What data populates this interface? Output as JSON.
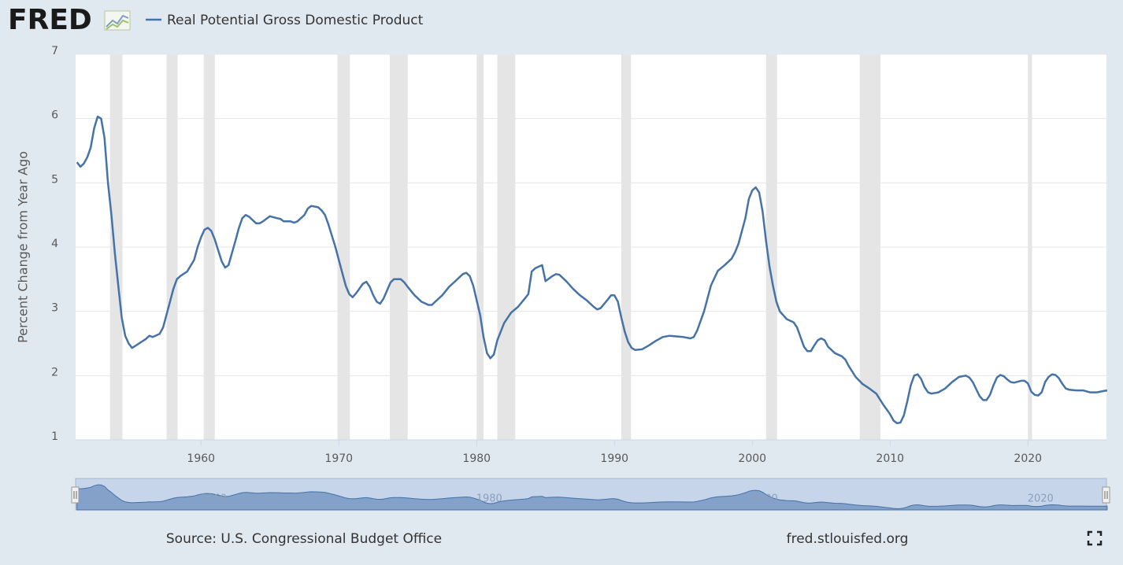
{
  "chart_data": {
    "type": "line",
    "logo": "FRED",
    "ylabel": "Percent Change from Year Ago",
    "source": "Source: U.S. Congressional Budget Office",
    "site": "fred.stlouisfed.org",
    "xlim": [
      1950.9,
      2025.7
    ],
    "ylim": [
      1,
      7
    ],
    "yticks": [
      1,
      2,
      3,
      4,
      5,
      6,
      7
    ],
    "xticks": [
      1960,
      1970,
      1980,
      1990,
      2000,
      2010,
      2020
    ],
    "navigator_ticks": [
      1960,
      1980,
      2000,
      2020
    ],
    "grid": true,
    "recessions": [
      [
        1953.4,
        1954.3
      ],
      [
        1957.5,
        1958.3
      ],
      [
        1960.2,
        1961.0
      ],
      [
        1969.9,
        1970.8
      ],
      [
        1973.7,
        1975.0
      ],
      [
        1980.0,
        1980.5
      ],
      [
        1981.5,
        1982.8
      ],
      [
        1990.5,
        1991.2
      ],
      [
        2001.0,
        2001.8
      ],
      [
        2007.8,
        2009.3
      ],
      [
        2020.0,
        2020.3
      ]
    ],
    "x": [
      1951.0,
      1951.25,
      1951.5,
      1951.75,
      1952.0,
      1952.25,
      1952.5,
      1952.75,
      1953.0,
      1953.25,
      1953.5,
      1953.75,
      1954.0,
      1954.25,
      1954.5,
      1954.75,
      1955.0,
      1955.5,
      1956.0,
      1956.25,
      1956.5,
      1957.0,
      1957.25,
      1957.5,
      1958.0,
      1958.25,
      1958.5,
      1959.0,
      1959.5,
      1959.75,
      1960.0,
      1960.25,
      1960.5,
      1960.75,
      1961.0,
      1961.5,
      1961.75,
      1962.0,
      1962.5,
      1962.75,
      1963.0,
      1963.25,
      1963.5,
      1964.0,
      1964.25,
      1964.5,
      1965.0,
      1965.5,
      1965.75,
      1966.0,
      1966.5,
      1966.75,
      1967.0,
      1967.5,
      1967.75,
      1968.0,
      1968.5,
      1968.75,
      1969.0,
      1969.25,
      1969.75,
      1970.25,
      1970.5,
      1970.75,
      1971.0,
      1971.25,
      1971.75,
      1972.0,
      1972.25,
      1972.5,
      1972.75,
      1973.0,
      1973.25,
      1973.75,
      1974.0,
      1974.5,
      1974.75,
      1975.0,
      1975.5,
      1976.0,
      1976.5,
      1976.75,
      1977.0,
      1977.5,
      1978.0,
      1978.5,
      1979.0,
      1979.25,
      1979.5,
      1979.75,
      1980.25,
      1980.5,
      1980.75,
      1981.0,
      1981.25,
      1981.5,
      1982.0,
      1982.5,
      1983.0,
      1983.5,
      1983.75,
      1984.0,
      1984.25,
      1984.75,
      1985.0,
      1985.5,
      1985.75,
      1986.0,
      1986.5,
      1987.0,
      1987.5,
      1988.0,
      1988.5,
      1988.75,
      1989.0,
      1989.5,
      1989.75,
      1990.0,
      1990.25,
      1990.5,
      1990.75,
      1991.0,
      1991.25,
      1991.5,
      1992.0,
      1992.5,
      1993.0,
      1993.5,
      1994.0,
      1994.5,
      1995.0,
      1995.5,
      1995.75,
      1996.0,
      1996.5,
      1997.0,
      1997.5,
      1998.0,
      1998.5,
      1998.75,
      1999.0,
      1999.5,
      1999.75,
      2000.0,
      2000.25,
      2000.5,
      2000.75,
      2001.0,
      2001.25,
      2001.5,
      2001.75,
      2002.0,
      2002.5,
      2003.0,
      2003.25,
      2003.5,
      2003.75,
      2004.0,
      2004.25,
      2004.5,
      2004.75,
      2005.0,
      2005.25,
      2005.5,
      2006.0,
      2006.5,
      2006.75,
      2007.0,
      2007.5,
      2008.0,
      2008.5,
      2009.0,
      2009.5,
      2010.0,
      2010.25,
      2010.5,
      2010.75,
      2011.0,
      2011.25,
      2011.5,
      2011.75,
      2012.0,
      2012.25,
      2012.5,
      2012.75,
      2013.0,
      2013.5,
      2014.0,
      2014.5,
      2015.0,
      2015.5,
      2015.75,
      2016.0,
      2016.5,
      2016.75,
      2017.0,
      2017.25,
      2017.5,
      2017.75,
      2018.0,
      2018.25,
      2018.5,
      2018.75,
      2019.0,
      2019.5,
      2019.75,
      2020.0,
      2020.25,
      2020.5,
      2020.75,
      2021.0,
      2021.25,
      2021.5,
      2021.75,
      2022.0,
      2022.25,
      2022.5,
      2022.75,
      2023.0,
      2023.5,
      2024.0,
      2024.5,
      2025.0,
      2025.5,
      2025.75
    ],
    "series": [
      {
        "name": "Real Potential Gross Domestic Product",
        "color": "#4572a7",
        "values": [
          5.32,
          5.25,
          5.3,
          5.4,
          5.55,
          5.85,
          6.03,
          6.0,
          5.7,
          5.0,
          4.5,
          3.9,
          3.4,
          2.9,
          2.62,
          2.5,
          2.43,
          2.5,
          2.57,
          2.62,
          2.6,
          2.65,
          2.75,
          2.95,
          3.35,
          3.5,
          3.55,
          3.62,
          3.8,
          4.0,
          4.15,
          4.27,
          4.3,
          4.25,
          4.12,
          3.78,
          3.68,
          3.72,
          4.1,
          4.3,
          4.45,
          4.5,
          4.47,
          4.37,
          4.37,
          4.4,
          4.48,
          4.45,
          4.44,
          4.4,
          4.4,
          4.38,
          4.4,
          4.5,
          4.6,
          4.64,
          4.62,
          4.57,
          4.5,
          4.35,
          4.0,
          3.6,
          3.4,
          3.27,
          3.22,
          3.28,
          3.43,
          3.46,
          3.38,
          3.25,
          3.15,
          3.12,
          3.2,
          3.45,
          3.5,
          3.5,
          3.45,
          3.38,
          3.25,
          3.15,
          3.1,
          3.1,
          3.15,
          3.25,
          3.38,
          3.48,
          3.58,
          3.6,
          3.55,
          3.4,
          2.95,
          2.6,
          2.35,
          2.27,
          2.33,
          2.55,
          2.82,
          2.98,
          3.07,
          3.2,
          3.27,
          3.62,
          3.67,
          3.72,
          3.47,
          3.55,
          3.58,
          3.57,
          3.47,
          3.35,
          3.25,
          3.17,
          3.07,
          3.03,
          3.05,
          3.18,
          3.25,
          3.25,
          3.15,
          2.9,
          2.68,
          2.52,
          2.43,
          2.4,
          2.41,
          2.47,
          2.54,
          2.6,
          2.62,
          2.61,
          2.6,
          2.58,
          2.6,
          2.7,
          3.0,
          3.4,
          3.63,
          3.72,
          3.82,
          3.92,
          4.05,
          4.45,
          4.75,
          4.88,
          4.93,
          4.85,
          4.55,
          4.1,
          3.7,
          3.4,
          3.15,
          3.0,
          2.88,
          2.83,
          2.75,
          2.6,
          2.45,
          2.38,
          2.38,
          2.47,
          2.55,
          2.58,
          2.55,
          2.45,
          2.35,
          2.3,
          2.25,
          2.15,
          1.98,
          1.87,
          1.8,
          1.72,
          1.55,
          1.4,
          1.3,
          1.26,
          1.27,
          1.38,
          1.6,
          1.85,
          2.0,
          2.02,
          1.95,
          1.82,
          1.74,
          1.72,
          1.74,
          1.8,
          1.9,
          1.98,
          2.0,
          1.97,
          1.9,
          1.68,
          1.62,
          1.62,
          1.7,
          1.85,
          1.97,
          2.01,
          1.99,
          1.94,
          1.9,
          1.89,
          1.92,
          1.92,
          1.88,
          1.75,
          1.7,
          1.69,
          1.74,
          1.9,
          1.98,
          2.02,
          2.01,
          1.96,
          1.87,
          1.8,
          1.78,
          1.77,
          1.77,
          1.74,
          1.74,
          1.76,
          1.77
        ]
      }
    ]
  }
}
